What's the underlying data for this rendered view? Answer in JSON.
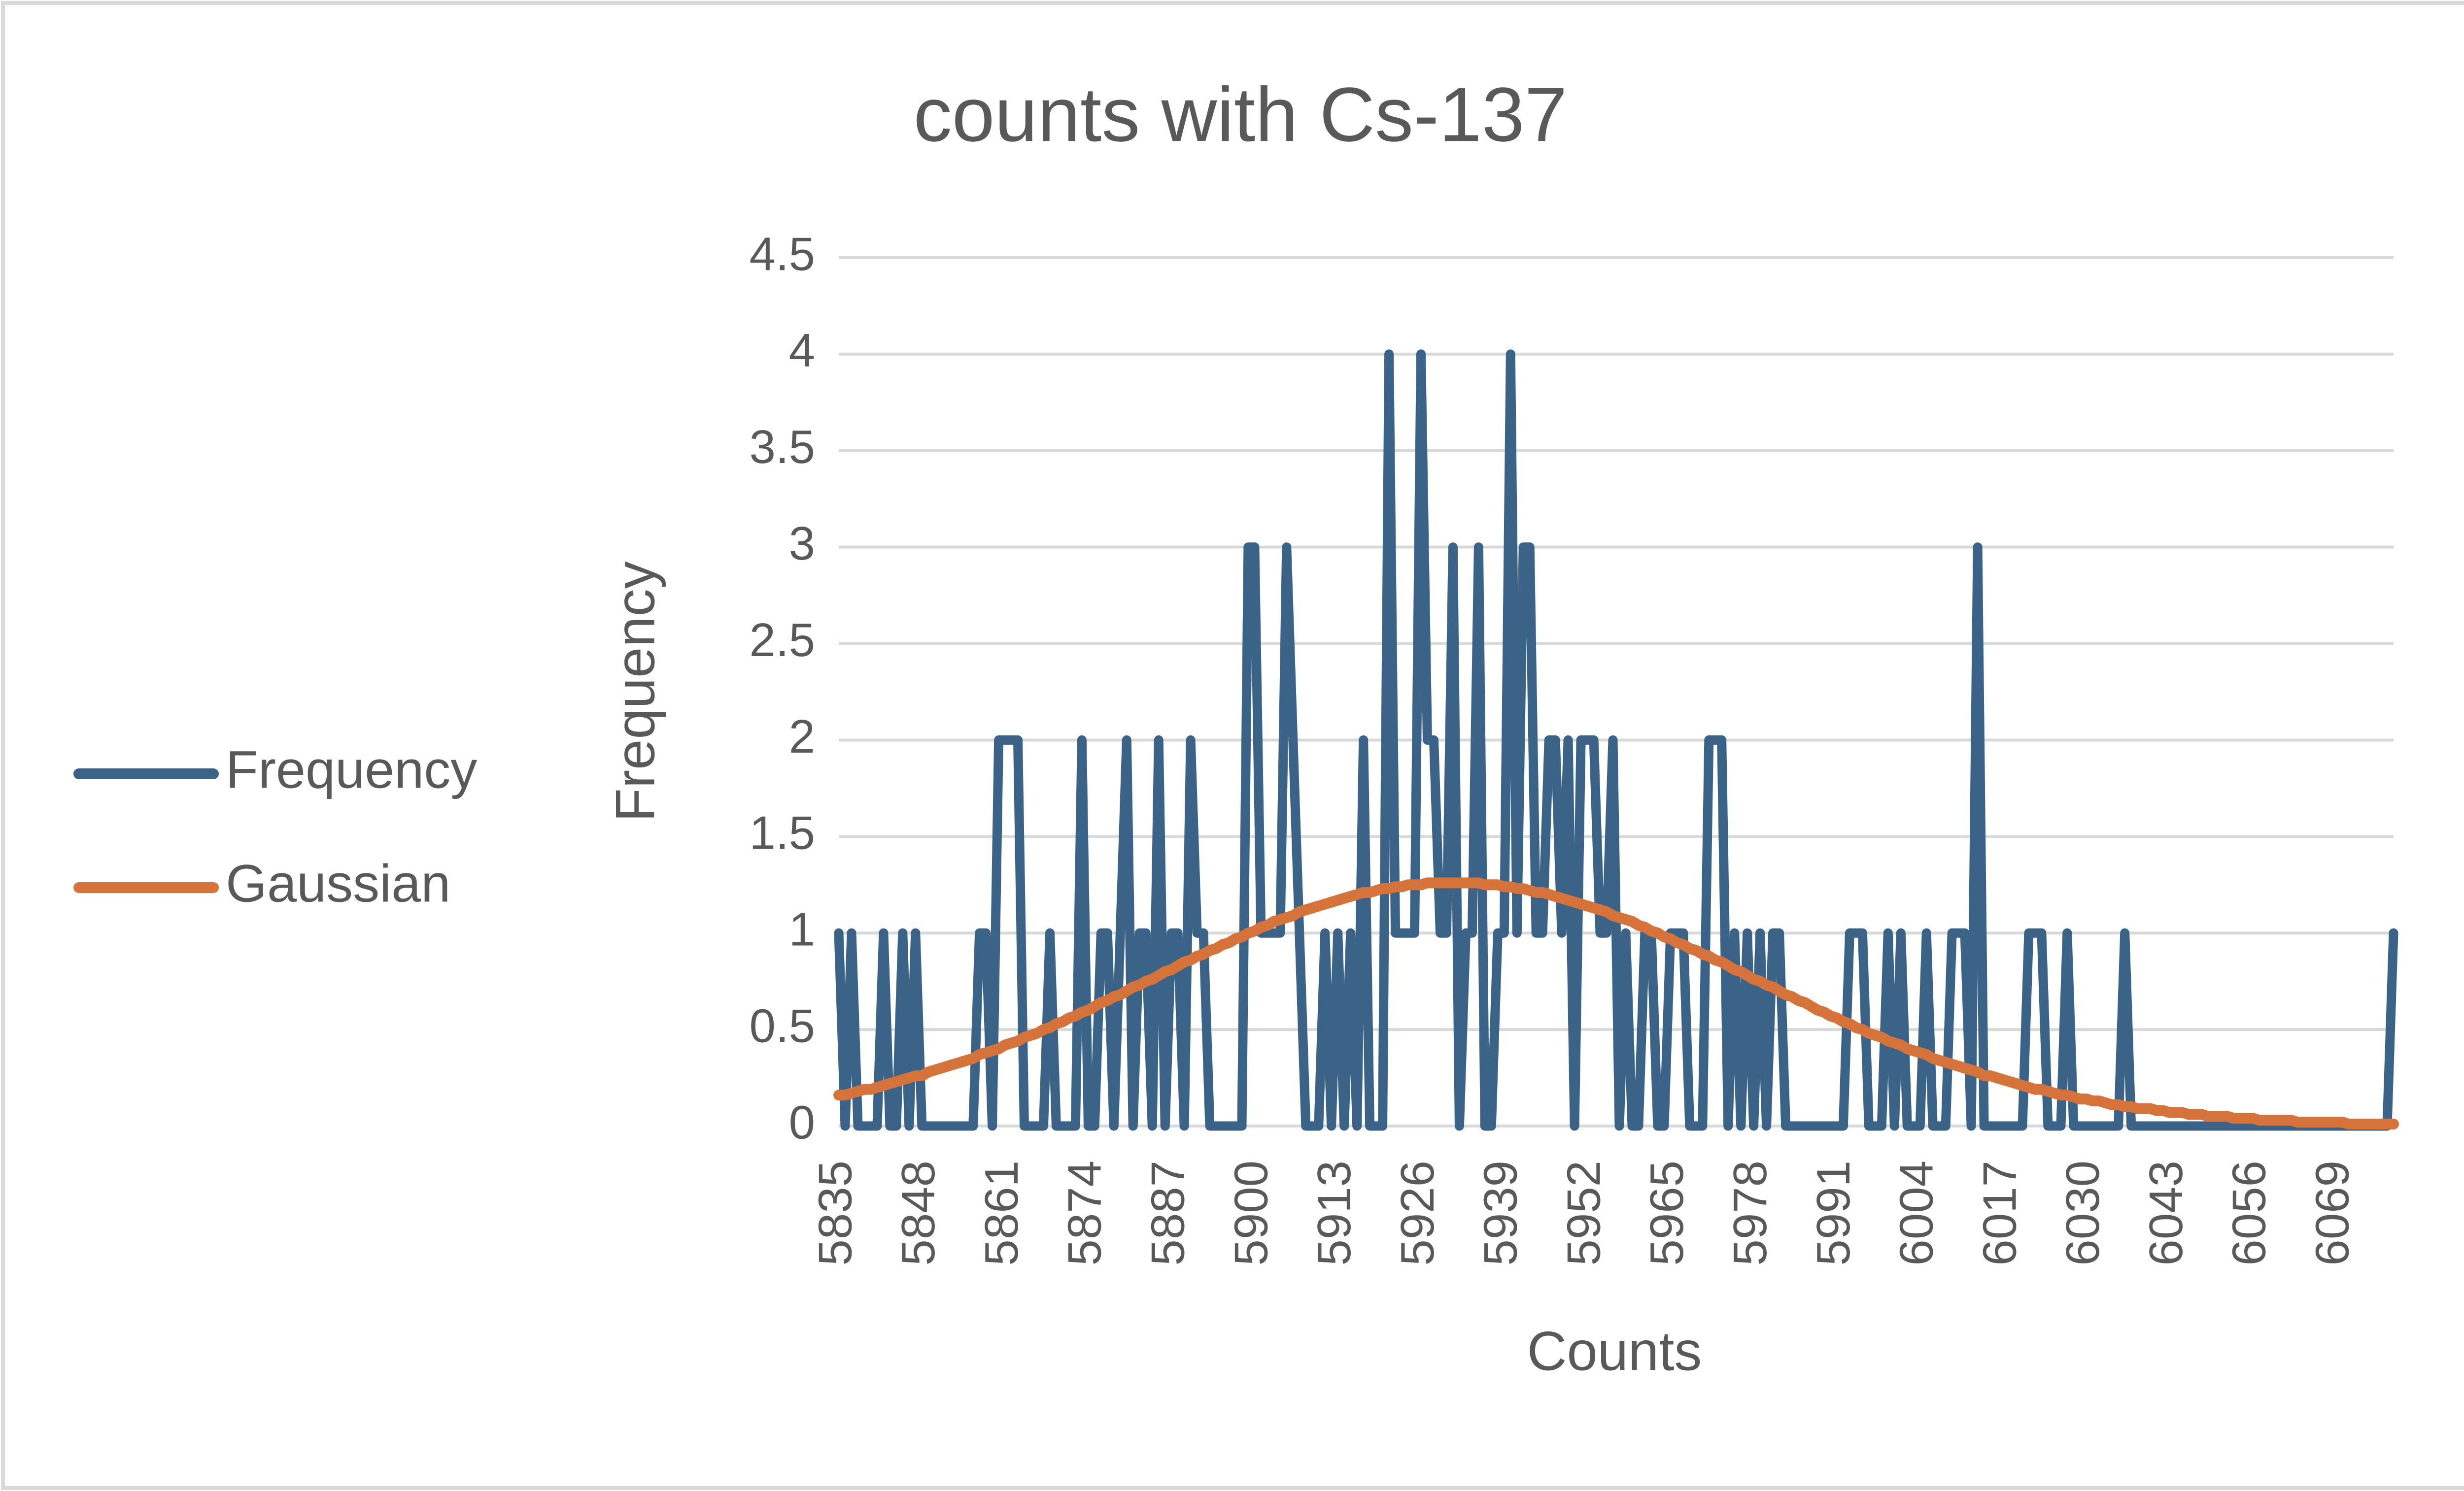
{
  "chart_data": {
    "type": "line",
    "title": "counts with Cs-137",
    "x_label": "Counts",
    "y_label": "Frequency",
    "categories": [
      "5835",
      null,
      null,
      null,
      null,
      null,
      null,
      null,
      null,
      null,
      null,
      null,
      null,
      "5848",
      null,
      null,
      null,
      null,
      null,
      null,
      null,
      null,
      null,
      null,
      null,
      null,
      "5861",
      null,
      null,
      null,
      null,
      null,
      null,
      null,
      null,
      null,
      null,
      null,
      null,
      "5874",
      null,
      null,
      null,
      null,
      null,
      null,
      null,
      null,
      null,
      null,
      null,
      null,
      "5887",
      null,
      null,
      null,
      null,
      null,
      null,
      null,
      null,
      null,
      null,
      null,
      null,
      "5900",
      null,
      null,
      null,
      null,
      null,
      null,
      null,
      null,
      null,
      null,
      null,
      null,
      "5913",
      null,
      null,
      null,
      null,
      null,
      null,
      null,
      null,
      null,
      null,
      null,
      null,
      "5926",
      null,
      null,
      null,
      null,
      null,
      null,
      null,
      null,
      null,
      null,
      null,
      null,
      "5939",
      null,
      null,
      null,
      null,
      null,
      null,
      null,
      null,
      null,
      null,
      null,
      null,
      "5952",
      null,
      null,
      null,
      null,
      null,
      null,
      null,
      null,
      null,
      null,
      null,
      null,
      "5965",
      null,
      null,
      null,
      null,
      null,
      null,
      null,
      null,
      null,
      null,
      null,
      null,
      "5978",
      null,
      null,
      null,
      null,
      null,
      null,
      null,
      null,
      null,
      null,
      null,
      null,
      "5991",
      null,
      null,
      null,
      null,
      null,
      null,
      null,
      null,
      null,
      null,
      null,
      null,
      "6004",
      null,
      null,
      null,
      null,
      null,
      null,
      null,
      null,
      null,
      null,
      null,
      null,
      "6017",
      null,
      null,
      null,
      null,
      null,
      null,
      null,
      null,
      null,
      null,
      null,
      null,
      "6030",
      null,
      null,
      null,
      null,
      null,
      null,
      null,
      null,
      null,
      null,
      null,
      null,
      "6043",
      null,
      null,
      null,
      null,
      null,
      null,
      null,
      null,
      null,
      null,
      null,
      null,
      "6056",
      null,
      null,
      null,
      null,
      null,
      null,
      null,
      null,
      null,
      null,
      null,
      null,
      "6069",
      null,
      null,
      null,
      null,
      null,
      null,
      null,
      null,
      null
    ],
    "series": [
      {
        "name": "Frequency",
        "color": "#3b6287",
        "values": [
          1,
          0,
          1,
          0,
          0,
          0,
          0,
          1,
          0,
          0,
          1,
          0,
          1,
          0,
          0,
          0,
          0,
          0,
          0,
          0,
          0,
          0,
          1,
          1,
          0,
          2,
          2,
          2,
          2,
          0,
          0,
          0,
          0,
          1,
          0,
          0,
          0,
          0,
          2,
          0,
          0,
          1,
          1,
          0,
          1,
          2,
          0,
          1,
          1,
          0,
          2,
          0,
          1,
          1,
          0,
          2,
          1,
          1,
          0,
          0,
          0,
          0,
          0,
          0,
          3,
          3,
          1,
          1,
          1,
          1,
          3,
          2,
          1,
          0,
          0,
          0,
          1,
          0,
          1,
          0,
          1,
          0,
          2,
          0,
          0,
          0,
          4,
          1,
          1,
          1,
          1,
          4,
          2,
          2,
          1,
          1,
          3,
          0,
          1,
          1,
          3,
          0,
          0,
          1,
          1,
          4,
          1,
          3,
          3,
          1,
          1,
          2,
          2,
          1,
          2,
          0,
          2,
          2,
          2,
          1,
          1,
          2,
          0,
          1,
          0,
          0,
          1,
          1,
          0,
          0,
          1,
          1,
          1,
          0,
          0,
          0,
          2,
          2,
          2,
          0,
          1,
          0,
          1,
          0,
          1,
          0,
          1,
          1,
          0,
          0,
          0,
          0,
          0,
          0,
          0,
          0,
          0,
          0,
          1,
          1,
          1,
          0,
          0,
          0,
          1,
          0,
          1,
          0,
          0,
          0,
          1,
          0,
          0,
          0,
          1,
          1,
          1,
          0,
          3,
          0,
          0,
          0,
          0,
          0,
          0,
          0,
          1,
          1,
          1,
          0,
          0,
          0,
          1,
          0,
          0,
          0,
          0,
          0,
          0,
          0,
          0,
          1,
          0,
          0,
          0,
          0,
          0,
          0,
          0,
          0,
          0,
          0,
          0,
          0,
          0,
          0,
          0,
          0,
          0,
          0,
          0,
          0,
          0,
          0,
          0,
          0,
          0,
          0,
          0,
          0,
          0,
          0,
          0,
          0,
          0,
          0,
          0,
          0,
          0,
          0,
          0,
          0,
          0,
          1
        ]
      },
      {
        "name": "Gaussian",
        "color": "#d6733a",
        "values": [
          0.16,
          0.16,
          0.17,
          0.18,
          0.19,
          0.19,
          0.2,
          0.21,
          0.22,
          0.23,
          0.24,
          0.25,
          0.26,
          0.26,
          0.28,
          0.29,
          0.3,
          0.31,
          0.32,
          0.33,
          0.34,
          0.35,
          0.37,
          0.38,
          0.39,
          0.4,
          0.42,
          0.43,
          0.44,
          0.46,
          0.47,
          0.48,
          0.5,
          0.51,
          0.53,
          0.54,
          0.56,
          0.57,
          0.59,
          0.6,
          0.62,
          0.64,
          0.65,
          0.67,
          0.68,
          0.7,
          0.72,
          0.73,
          0.75,
          0.76,
          0.78,
          0.8,
          0.81,
          0.83,
          0.85,
          0.86,
          0.88,
          0.89,
          0.91,
          0.92,
          0.94,
          0.95,
          0.97,
          0.98,
          1,
          1.01,
          1.03,
          1.04,
          1.06,
          1.07,
          1.08,
          1.09,
          1.11,
          1.12,
          1.13,
          1.14,
          1.15,
          1.16,
          1.17,
          1.18,
          1.19,
          1.2,
          1.21,
          1.21,
          1.22,
          1.23,
          1.23,
          1.24,
          1.24,
          1.25,
          1.25,
          1.25,
          1.26,
          1.26,
          1.26,
          1.26,
          1.26,
          1.26,
          1.26,
          1.26,
          1.26,
          1.25,
          1.25,
          1.25,
          1.24,
          1.24,
          1.23,
          1.23,
          1.22,
          1.21,
          1.21,
          1.2,
          1.19,
          1.18,
          1.17,
          1.16,
          1.15,
          1.14,
          1.13,
          1.12,
          1.11,
          1.09,
          1.08,
          1.07,
          1.06,
          1.04,
          1.03,
          1.01,
          1,
          0.98,
          0.97,
          0.95,
          0.94,
          0.92,
          0.91,
          0.89,
          0.88,
          0.86,
          0.85,
          0.83,
          0.81,
          0.8,
          0.78,
          0.76,
          0.75,
          0.73,
          0.72,
          0.7,
          0.68,
          0.67,
          0.65,
          0.64,
          0.62,
          0.6,
          0.59,
          0.57,
          0.56,
          0.54,
          0.53,
          0.51,
          0.5,
          0.48,
          0.47,
          0.46,
          0.44,
          0.43,
          0.42,
          0.4,
          0.39,
          0.38,
          0.37,
          0.35,
          0.34,
          0.33,
          0.32,
          0.31,
          0.3,
          0.29,
          0.28,
          0.26,
          0.26,
          0.25,
          0.24,
          0.23,
          0.22,
          0.21,
          0.2,
          0.19,
          0.19,
          0.18,
          0.17,
          0.16,
          0.16,
          0.15,
          0.14,
          0.14,
          0.13,
          0.13,
          0.12,
          0.11,
          0.11,
          0.1,
          0.1,
          0.09,
          0.09,
          0.09,
          0.08,
          0.08,
          0.07,
          0.07,
          0.07,
          0.06,
          0.06,
          0.06,
          0.05,
          0.05,
          0.05,
          0.05,
          0.04,
          0.04,
          0.04,
          0.04,
          0.03,
          0.03,
          0.03,
          0.03,
          0.03,
          0.03,
          0.02,
          0.02,
          0.02,
          0.02,
          0.02,
          0.02,
          0.02,
          0.02,
          0.01,
          0.01,
          0.01,
          0.01,
          0.01,
          0.01,
          0.01,
          0.01
        ]
      }
    ],
    "ylim": [
      0,
      4.5
    ],
    "yticks": [
      0,
      0.5,
      1,
      1.5,
      2,
      2.5,
      3,
      3.5,
      4,
      4.5
    ],
    "grid": true,
    "legend": "left"
  }
}
